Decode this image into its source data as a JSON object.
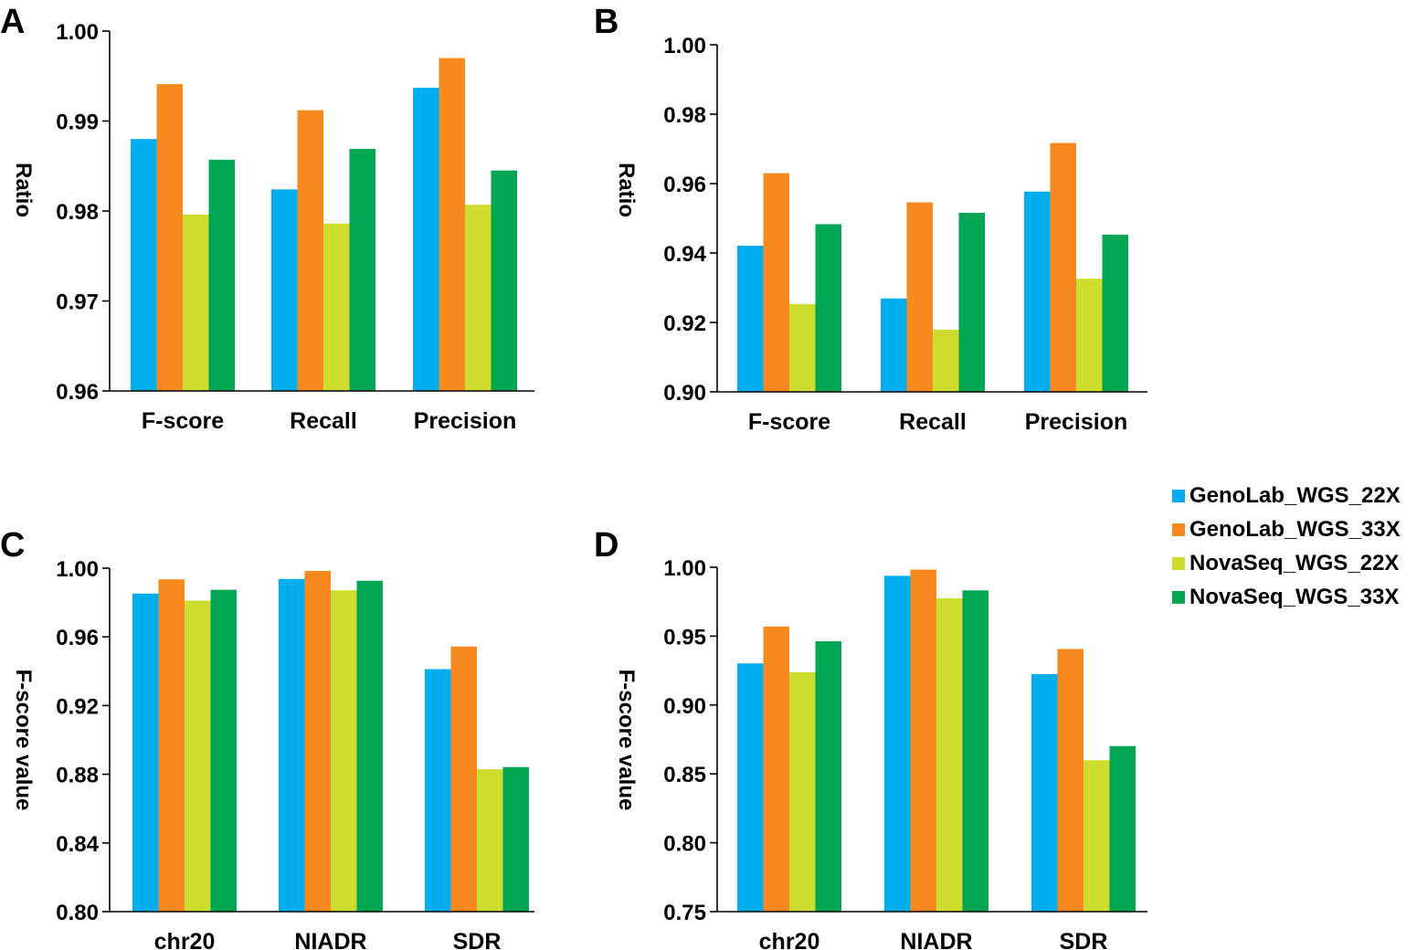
{
  "legend": {
    "placement": "right",
    "entries": [
      {
        "label": "GenoLab_WGS_22X",
        "color": "#00AEEF"
      },
      {
        "label": "GenoLab_WGS_33X",
        "color": "#F7891F"
      },
      {
        "label": "NovaSeq_WGS_22X",
        "color": "#CEDC2E"
      },
      {
        "label": "NovaSeq_WGS_33X",
        "color": "#00A651"
      }
    ]
  },
  "chart_data": [
    {
      "panel": "A",
      "type": "bar",
      "ylabel": "Ratio",
      "xlabel": "",
      "ylim": [
        0.96,
        1.0
      ],
      "yticks": [
        "0.96",
        "0.97",
        "0.98",
        "0.99",
        "1.00"
      ],
      "categories": [
        "F-score",
        "Recall",
        "Precision"
      ],
      "series": [
        {
          "name": "GenoLab_WGS_22X",
          "values": [
            0.988,
            0.9824,
            0.9937
          ]
        },
        {
          "name": "GenoLab_WGS_33X",
          "values": [
            0.9941,
            0.9912,
            0.997
          ]
        },
        {
          "name": "NovaSeq_WGS_22X",
          "values": [
            0.9796,
            0.9786,
            0.9807
          ]
        },
        {
          "name": "NovaSeq_WGS_33X",
          "values": [
            0.9857,
            0.9869,
            0.9845
          ]
        }
      ]
    },
    {
      "panel": "B",
      "type": "bar",
      "ylabel": "Ratio",
      "xlabel": "",
      "ylim": [
        0.9,
        1.0
      ],
      "yticks": [
        "0.90",
        "0.92",
        "0.94",
        "0.96",
        "0.98",
        "1.00"
      ],
      "categories": [
        "F-score",
        "Recall",
        "Precision"
      ],
      "series": [
        {
          "name": "GenoLab_WGS_22X",
          "values": [
            0.9421,
            0.9269,
            0.9577
          ]
        },
        {
          "name": "GenoLab_WGS_33X",
          "values": [
            0.963,
            0.9546,
            0.9717
          ]
        },
        {
          "name": "NovaSeq_WGS_22X",
          "values": [
            0.9253,
            0.9179,
            0.9326
          ]
        },
        {
          "name": "NovaSeq_WGS_33X",
          "values": [
            0.9483,
            0.9516,
            0.9453
          ]
        }
      ]
    },
    {
      "panel": "C",
      "type": "bar",
      "ylabel": "F-score value",
      "xlabel": "",
      "ylim": [
        0.8,
        1.0
      ],
      "yticks": [
        "0.80",
        "0.84",
        "0.88",
        "0.92",
        "0.96",
        "1.00"
      ],
      "categories": [
        "chr20",
        "NIADR",
        "SDR"
      ],
      "series": [
        {
          "name": "GenoLab_WGS_22X",
          "values": [
            0.9852,
            0.9937,
            0.9412
          ]
        },
        {
          "name": "GenoLab_WGS_33X",
          "values": [
            0.9935,
            0.9984,
            0.9544
          ]
        },
        {
          "name": "NovaSeq_WGS_22X",
          "values": [
            0.9811,
            0.9871,
            0.8829
          ]
        },
        {
          "name": "NovaSeq_WGS_33X",
          "values": [
            0.9874,
            0.9927,
            0.8842
          ]
        }
      ]
    },
    {
      "panel": "D",
      "type": "bar",
      "ylabel": "F-score value",
      "xlabel": "",
      "ylim": [
        0.75,
        1.0
      ],
      "yticks": [
        "0.75",
        "0.80",
        "0.85",
        "0.90",
        "0.95",
        "1.00"
      ],
      "categories": [
        "chr20",
        "NIADR",
        "SDR"
      ],
      "series": [
        {
          "name": "GenoLab_WGS_22X",
          "values": [
            0.9302,
            0.9938,
            0.9224
          ]
        },
        {
          "name": "GenoLab_WGS_33X",
          "values": [
            0.957,
            0.9983,
            0.9407
          ]
        },
        {
          "name": "NovaSeq_WGS_22X",
          "values": [
            0.9237,
            0.9774,
            0.8599
          ]
        },
        {
          "name": "NovaSeq_WGS_33X",
          "values": [
            0.9463,
            0.9832,
            0.8702
          ]
        }
      ]
    }
  ]
}
